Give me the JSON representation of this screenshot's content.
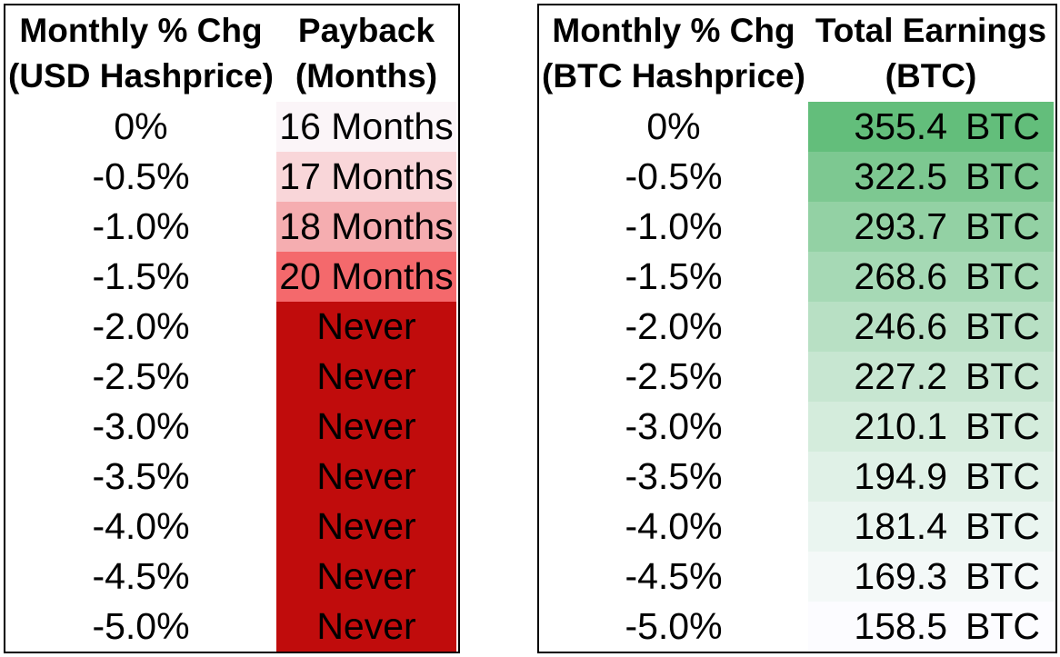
{
  "left_table": {
    "header": {
      "col1_line1": "Monthly % Chg",
      "col1_line2": "(USD Hashprice)",
      "col2_line1": "Payback",
      "col2_line2": "(Months)"
    },
    "rows": [
      {
        "pct": "0%",
        "payback": "16 Months",
        "bg": "#FBF5F8"
      },
      {
        "pct": "-0.5%",
        "payback": "17 Months",
        "bg": "#F9D6D9"
      },
      {
        "pct": "-1.0%",
        "payback": "18 Months",
        "bg": "#F5ADB0"
      },
      {
        "pct": "-1.5%",
        "payback": "20 Months",
        "bg": "#F4696C"
      },
      {
        "pct": "-2.0%",
        "payback": "Never",
        "bg": "#C00C0C"
      },
      {
        "pct": "-2.5%",
        "payback": "Never",
        "bg": "#C00C0C"
      },
      {
        "pct": "-3.0%",
        "payback": "Never",
        "bg": "#C00C0C"
      },
      {
        "pct": "-3.5%",
        "payback": "Never",
        "bg": "#C00C0C"
      },
      {
        "pct": "-4.0%",
        "payback": "Never",
        "bg": "#C00C0C"
      },
      {
        "pct": "-4.5%",
        "payback": "Never",
        "bg": "#C00C0C"
      },
      {
        "pct": "-5.0%",
        "payback": "Never",
        "bg": "#C00C0C"
      }
    ]
  },
  "right_table": {
    "header": {
      "col1_line1": "Monthly % Chg",
      "col1_line2": "(BTC Hashprice)",
      "col2_line1": "Total Earnings",
      "col2_line2": "(BTC)"
    },
    "unit": "BTC",
    "rows": [
      {
        "pct": "0%",
        "btc": "355.4",
        "bg": "#63BE7B"
      },
      {
        "pct": "-0.5%",
        "btc": "322.5",
        "bg": "#7DC891"
      },
      {
        "pct": "-1.0%",
        "btc": "293.7",
        "bg": "#93D1A4"
      },
      {
        "pct": "-1.5%",
        "btc": "268.6",
        "bg": "#A6D9B5"
      },
      {
        "pct": "-2.0%",
        "btc": "246.6",
        "bg": "#B8E0C4"
      },
      {
        "pct": "-2.5%",
        "btc": "227.2",
        "bg": "#C7E6D1"
      },
      {
        "pct": "-3.0%",
        "btc": "210.1",
        "bg": "#D4ECDC"
      },
      {
        "pct": "-3.5%",
        "btc": "194.9",
        "bg": "#E0F1E7"
      },
      {
        "pct": "-4.0%",
        "btc": "181.4",
        "bg": "#EAF5F0"
      },
      {
        "pct": "-4.5%",
        "btc": "169.3",
        "bg": "#F4F9F8"
      },
      {
        "pct": "-5.0%",
        "btc": "158.5",
        "bg": "#FCFCFF"
      }
    ]
  },
  "chart_data": [
    {
      "type": "table",
      "columns": [
        "Monthly % Chg (USD Hashprice)",
        "Payback (Months)"
      ],
      "rows": [
        [
          "0%",
          "16 Months"
        ],
        [
          "-0.5%",
          "17 Months"
        ],
        [
          "-1.0%",
          "18 Months"
        ],
        [
          "-1.5%",
          "20 Months"
        ],
        [
          "-2.0%",
          "Never"
        ],
        [
          "-2.5%",
          "Never"
        ],
        [
          "-3.0%",
          "Never"
        ],
        [
          "-3.5%",
          "Never"
        ],
        [
          "-4.0%",
          "Never"
        ],
        [
          "-4.5%",
          "Never"
        ],
        [
          "-5.0%",
          "Never"
        ]
      ],
      "layout_hints": {
        "value_column_color_scale": [
          "#FCFCFF",
          "#F8696B"
        ],
        "never_fill_color": "#C00C0C"
      }
    },
    {
      "type": "table",
      "columns": [
        "Monthly % Chg (BTC Hashprice)",
        "Total Earnings (BTC)"
      ],
      "rows": [
        [
          "0%",
          355.4
        ],
        [
          "-0.5%",
          322.5
        ],
        [
          "-1.0%",
          293.7
        ],
        [
          "-1.5%",
          268.6
        ],
        [
          "-2.0%",
          246.6
        ],
        [
          "-2.5%",
          227.2
        ],
        [
          "-3.0%",
          210.1
        ],
        [
          "-3.5%",
          194.9
        ],
        [
          "-4.0%",
          181.4
        ],
        [
          "-4.5%",
          169.3
        ],
        [
          "-5.0%",
          158.5
        ]
      ],
      "layout_hints": {
        "value_column_color_scale": [
          "#FCFCFF",
          "#63BE7B"
        ],
        "unit": "BTC"
      }
    }
  ]
}
